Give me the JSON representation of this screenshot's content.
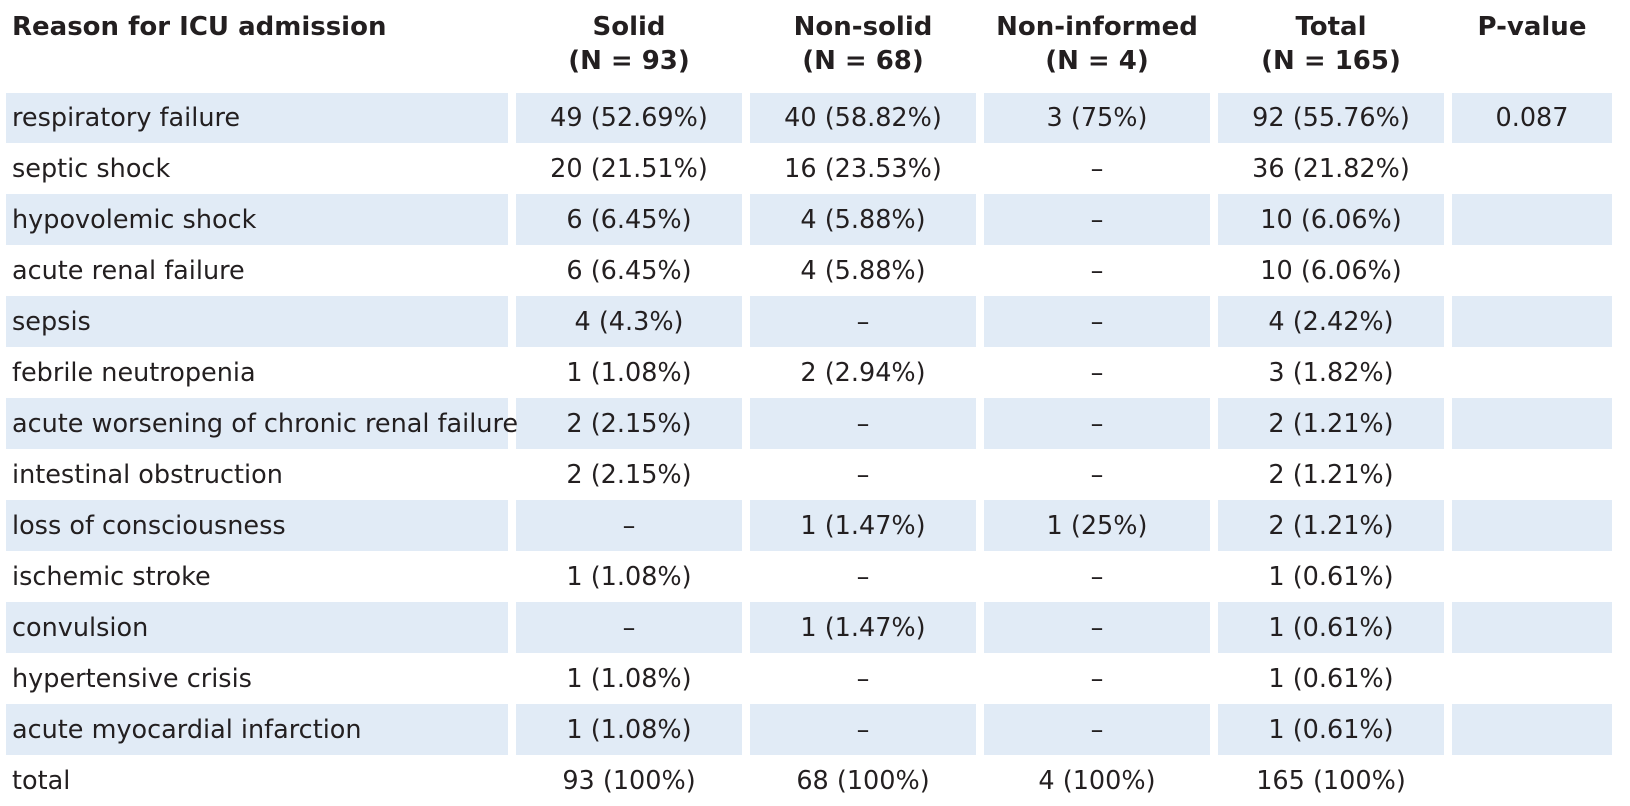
{
  "table": {
    "headers": [
      {
        "line1": "Reason for ICU admission",
        "line2": ""
      },
      {
        "line1": "Solid",
        "line2": "(N = 93)"
      },
      {
        "line1": "Non-solid",
        "line2": "(N = 68)"
      },
      {
        "line1": "Non-informed",
        "line2": "(N = 4)"
      },
      {
        "line1": "Total",
        "line2": "(N = 165)"
      },
      {
        "line1": "P-value",
        "line2": ""
      }
    ],
    "rows": [
      {
        "reason": "respiratory failure",
        "solid": "49 (52.69%)",
        "nonsolid": "40 (58.82%)",
        "noninformed": "3 (75%)",
        "total": "92 (55.76%)",
        "pvalue": "0.087"
      },
      {
        "reason": "septic shock",
        "solid": "20 (21.51%)",
        "nonsolid": "16 (23.53%)",
        "noninformed": "–",
        "total": "36 (21.82%)",
        "pvalue": ""
      },
      {
        "reason": "hypovolemic shock",
        "solid": "6 (6.45%)",
        "nonsolid": "4 (5.88%)",
        "noninformed": "–",
        "total": "10 (6.06%)",
        "pvalue": ""
      },
      {
        "reason": "acute renal failure",
        "solid": "6 (6.45%)",
        "nonsolid": "4 (5.88%)",
        "noninformed": "–",
        "total": "10 (6.06%)",
        "pvalue": ""
      },
      {
        "reason": "sepsis",
        "solid": "4 (4.3%)",
        "nonsolid": "–",
        "noninformed": "–",
        "total": "4 (2.42%)",
        "pvalue": ""
      },
      {
        "reason": "febrile neutropenia",
        "solid": "1 (1.08%)",
        "nonsolid": "2 (2.94%)",
        "noninformed": "–",
        "total": "3 (1.82%)",
        "pvalue": ""
      },
      {
        "reason": "acute worsening of chronic renal failure",
        "solid": "2 (2.15%)",
        "nonsolid": "–",
        "noninformed": "–",
        "total": "2 (1.21%)",
        "pvalue": ""
      },
      {
        "reason": "intestinal obstruction",
        "solid": "2 (2.15%)",
        "nonsolid": "–",
        "noninformed": "–",
        "total": "2 (1.21%)",
        "pvalue": ""
      },
      {
        "reason": "loss of consciousness",
        "solid": "–",
        "nonsolid": "1 (1.47%)",
        "noninformed": "1 (25%)",
        "total": "2 (1.21%)",
        "pvalue": ""
      },
      {
        "reason": "ischemic stroke",
        "solid": "1 (1.08%)",
        "nonsolid": "–",
        "noninformed": "–",
        "total": "1 (0.61%)",
        "pvalue": ""
      },
      {
        "reason": "convulsion",
        "solid": "–",
        "nonsolid": "1 (1.47%)",
        "noninformed": "–",
        "total": "1 (0.61%)",
        "pvalue": ""
      },
      {
        "reason": "hypertensive crisis",
        "solid": "1 (1.08%)",
        "nonsolid": "–",
        "noninformed": "–",
        "total": "1 (0.61%)",
        "pvalue": ""
      },
      {
        "reason": "acute myocardial infarction",
        "solid": "1 (1.08%)",
        "nonsolid": "–",
        "noninformed": "–",
        "total": "1 (0.61%)",
        "pvalue": ""
      },
      {
        "reason": "total",
        "solid": "93 (100%)",
        "nonsolid": "68 (100%)",
        "noninformed": "4 (100%)",
        "total": "165 (100%)",
        "pvalue": ""
      }
    ]
  },
  "colors": {
    "row_shade": "#e1ebf6",
    "text": "#231f20",
    "background": "#ffffff"
  }
}
